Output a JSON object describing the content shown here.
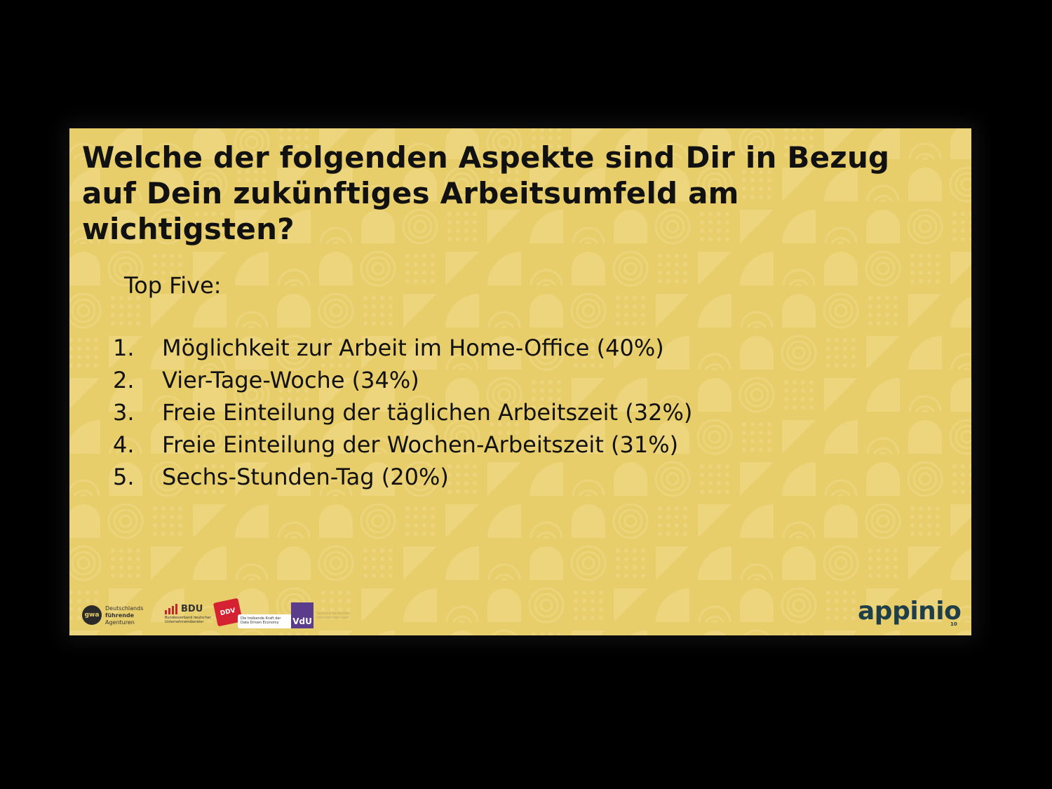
{
  "slide": {
    "title": "Welche der folgenden Aspekte sind Dir in Bezug auf Dein zukünftiges Arbeitsumfeld am wichtigsten?",
    "subtitle": "Top Five:",
    "items": [
      {
        "number": "1.",
        "text": "Möglichkeit zur Arbeit im Home-Office (40%)"
      },
      {
        "number": "2.",
        "text": "Vier-Tage-Woche (34%)"
      },
      {
        "number": "3.",
        "text": "Freie Einteilung der täglichen Arbeitszeit (32%)"
      },
      {
        "number": "4.",
        "text": "Freie Einteilung der Wochen-Arbeitszeit (31%)"
      },
      {
        "number": "5.",
        "text": "Sechs-Stunden-Tag (20%)"
      }
    ]
  },
  "footer": {
    "gwa": {
      "mark": "gwa",
      "line1": "Deutschlands",
      "line2": "führende",
      "line3": "Agenturen"
    },
    "bdu": {
      "word": "BDU",
      "sub": "Bundesverband deutscher Unternehmensberater"
    },
    "ddv": {
      "mark": "DDV",
      "text": "Die treibende Kraft der Data Driven Economy"
    },
    "vdu": {
      "mark": "VdU",
      "text": "Verband deutscher Unternehmerinnen"
    },
    "brand": {
      "name": "appinio",
      "page": "10"
    }
  },
  "colors": {
    "background": "#e8cd6b",
    "pattern": "#ecd67f",
    "text": "#111111",
    "brand": "#1e3f4a",
    "outer": "#000000"
  }
}
